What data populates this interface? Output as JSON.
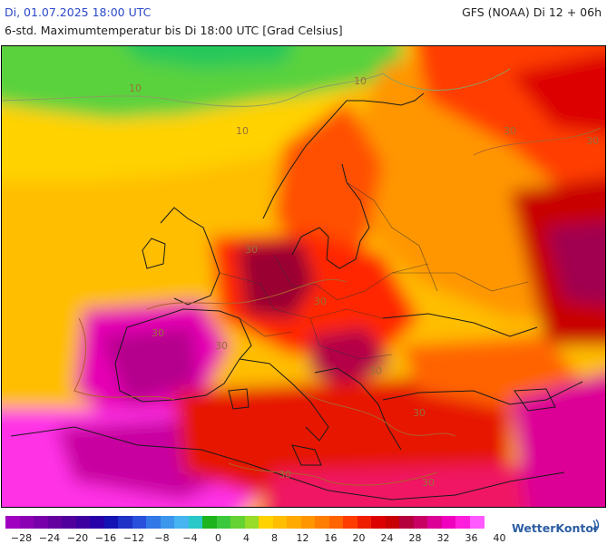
{
  "header": {
    "date_time": "Di, 01.07.2025 18:00 UTC",
    "model_run": "GFS (NOAA) Di 12 + 06h",
    "subtitle": "6-std. Maximumtemperatur bis Di 18:00 UTC [Grad Celsius]"
  },
  "map": {
    "region": "Europe",
    "contour_labels": [
      "10",
      "10",
      "10",
      "30",
      "30",
      "30",
      "30",
      "30",
      "30",
      "30",
      "30",
      "30",
      "30"
    ]
  },
  "legend": {
    "colors": [
      "#a000c0",
      "#8c00b4",
      "#7800aa",
      "#6400a0",
      "#50009c",
      "#3c00a0",
      "#2800aa",
      "#1414b4",
      "#1e32c8",
      "#2850dc",
      "#3278e6",
      "#3c96ec",
      "#46b4f0",
      "#28c8c8",
      "#1eb41e",
      "#3cc83c",
      "#64d232",
      "#96dc28",
      "#ffd200",
      "#ffbe00",
      "#ffaa00",
      "#ff9600",
      "#ff7d00",
      "#ff6400",
      "#ff3c00",
      "#f01e00",
      "#dc0000",
      "#c80000",
      "#b4003c",
      "#c80064",
      "#dc0096",
      "#f000be",
      "#ff1edc",
      "#ff5aff"
    ],
    "tick_labels": [
      "−28",
      "−24",
      "−20",
      "−16",
      "−12",
      "−8",
      "−4",
      "0",
      "4",
      "8",
      "12",
      "16",
      "20",
      "24",
      "28",
      "32",
      "36",
      "40"
    ]
  },
  "brand": {
    "name": "WetterKontor"
  }
}
